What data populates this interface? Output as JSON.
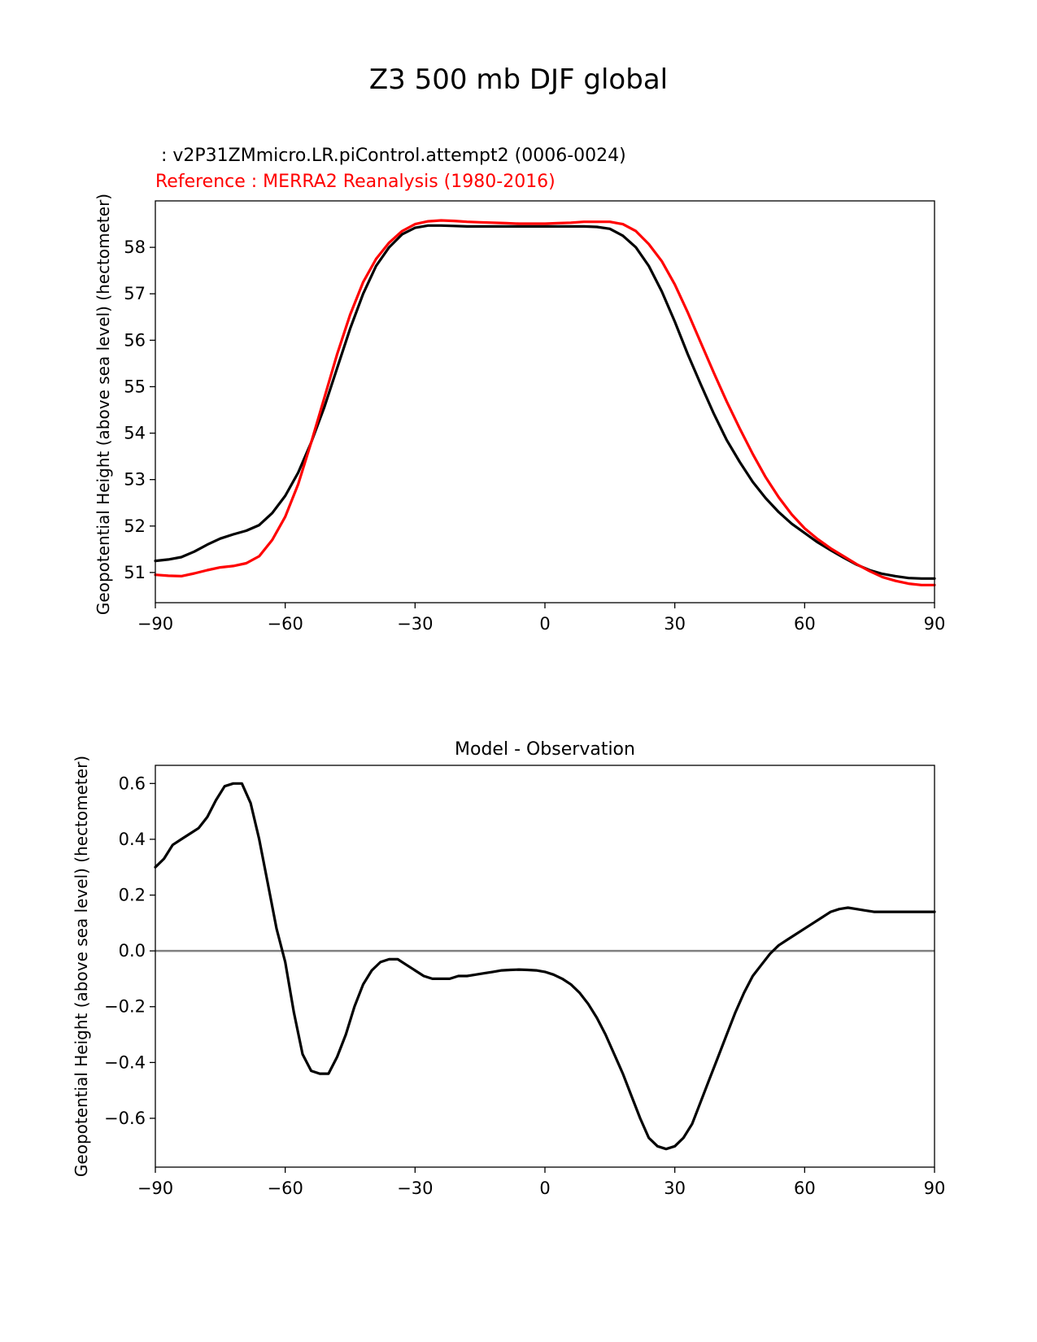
{
  "figure": {
    "suptitle": "Z3 500 mb DJF global"
  },
  "chart_data": [
    {
      "type": "line",
      "test_title": " : v2P31ZMmicro.LR.piControl.attempt2 (0006-0024)",
      "ref_title": "Reference : MERRA2 Reanalysis (1980-2016)",
      "ylabel": "Geopotential Height (above sea level) (hectometer)",
      "xlabel": "",
      "xlim": [
        -90,
        90
      ],
      "ylim": [
        50.35,
        59.0
      ],
      "xticks": [
        -90,
        -60,
        -30,
        0,
        30,
        60,
        90
      ],
      "xtick_labels": [
        "−90",
        "−60",
        "−30",
        "0",
        "30",
        "60",
        "90"
      ],
      "yticks": [
        51,
        52,
        53,
        54,
        55,
        56,
        57,
        58
      ],
      "ytick_labels": [
        "51",
        "52",
        "53",
        "54",
        "55",
        "56",
        "57",
        "58"
      ],
      "series": [
        {
          "name": "test",
          "color": "#000000",
          "x": [
            -90,
            -87,
            -84,
            -81,
            -78,
            -75,
            -72,
            -69,
            -66,
            -63,
            -60,
            -57,
            -54,
            -51,
            -48,
            -45,
            -42,
            -39,
            -36,
            -33,
            -30,
            -27,
            -24,
            -21,
            -18,
            -15,
            -12,
            -9,
            -6,
            -3,
            0,
            3,
            6,
            9,
            12,
            15,
            18,
            21,
            24,
            27,
            30,
            33,
            36,
            39,
            42,
            45,
            48,
            51,
            54,
            57,
            60,
            63,
            66,
            69,
            72,
            75,
            78,
            81,
            84,
            87,
            90
          ],
          "y": [
            51.25,
            51.28,
            51.33,
            51.45,
            51.6,
            51.73,
            51.82,
            51.9,
            52.02,
            52.28,
            52.65,
            53.15,
            53.8,
            54.55,
            55.4,
            56.25,
            57.0,
            57.6,
            58.0,
            58.28,
            58.42,
            58.47,
            58.47,
            58.46,
            58.45,
            58.45,
            58.45,
            58.45,
            58.45,
            58.45,
            58.45,
            58.45,
            58.45,
            58.45,
            58.44,
            58.4,
            58.25,
            58.0,
            57.6,
            57.05,
            56.4,
            55.7,
            55.05,
            54.42,
            53.85,
            53.38,
            52.95,
            52.6,
            52.3,
            52.05,
            51.85,
            51.65,
            51.48,
            51.32,
            51.17,
            51.05,
            50.97,
            50.92,
            50.88,
            50.87,
            50.87
          ]
        },
        {
          "name": "reference",
          "color": "#ff0000",
          "x": [
            -90,
            -87,
            -84,
            -81,
            -78,
            -75,
            -72,
            -69,
            -66,
            -63,
            -60,
            -57,
            -54,
            -51,
            -48,
            -45,
            -42,
            -39,
            -36,
            -33,
            -30,
            -27,
            -24,
            -21,
            -18,
            -15,
            -12,
            -9,
            -6,
            -3,
            0,
            3,
            6,
            9,
            12,
            15,
            18,
            21,
            24,
            27,
            30,
            33,
            36,
            39,
            42,
            45,
            48,
            51,
            54,
            57,
            60,
            63,
            66,
            69,
            72,
            75,
            78,
            81,
            84,
            87,
            90
          ],
          "y": [
            50.95,
            50.93,
            50.92,
            50.98,
            51.05,
            51.11,
            51.14,
            51.2,
            51.35,
            51.7,
            52.2,
            52.9,
            53.8,
            54.75,
            55.7,
            56.55,
            57.25,
            57.75,
            58.1,
            58.35,
            58.5,
            58.56,
            58.58,
            58.57,
            58.55,
            58.54,
            58.53,
            58.52,
            58.51,
            58.51,
            58.51,
            58.52,
            58.53,
            58.55,
            58.55,
            58.55,
            58.5,
            58.35,
            58.07,
            57.7,
            57.2,
            56.6,
            55.95,
            55.3,
            54.68,
            54.1,
            53.55,
            53.05,
            52.62,
            52.25,
            51.95,
            51.72,
            51.52,
            51.35,
            51.18,
            51.03,
            50.9,
            50.82,
            50.76,
            50.73,
            50.73
          ]
        }
      ]
    },
    {
      "type": "line",
      "title": "Model - Observation",
      "ylabel": "Geopotential Height (above sea level) (hectometer)",
      "xlabel": "",
      "xlim": [
        -90,
        90
      ],
      "ylim": [
        -0.775,
        0.665
      ],
      "xticks": [
        -90,
        -60,
        -30,
        0,
        30,
        60,
        90
      ],
      "xtick_labels": [
        "−90",
        "−60",
        "−30",
        "0",
        "30",
        "60",
        "90"
      ],
      "yticks": [
        -0.6,
        -0.4,
        -0.2,
        0.0,
        0.2,
        0.4,
        0.6
      ],
      "ytick_labels": [
        "−0.6",
        "−0.4",
        "−0.2",
        "0.0",
        "0.2",
        "0.4",
        "0.6"
      ],
      "zero_line_color": "#808080",
      "series": [
        {
          "name": "difference",
          "color": "#000000",
          "x": [
            -90,
            -88,
            -86,
            -84,
            -82,
            -80,
            -78,
            -76,
            -74,
            -72,
            -70,
            -68,
            -66,
            -64,
            -62,
            -60,
            -58,
            -56,
            -54,
            -52,
            -50,
            -48,
            -46,
            -44,
            -42,
            -40,
            -38,
            -36,
            -34,
            -32,
            -30,
            -28,
            -26,
            -24,
            -22,
            -20,
            -18,
            -16,
            -14,
            -12,
            -10,
            -8,
            -6,
            -4,
            -2,
            0,
            2,
            4,
            6,
            8,
            10,
            12,
            14,
            16,
            18,
            20,
            22,
            24,
            26,
            28,
            30,
            32,
            34,
            36,
            38,
            40,
            42,
            44,
            46,
            48,
            50,
            52,
            54,
            56,
            58,
            60,
            62,
            64,
            66,
            68,
            70,
            72,
            74,
            76,
            78,
            80,
            82,
            84,
            86,
            88,
            90
          ],
          "y": [
            0.3,
            0.33,
            0.38,
            0.4,
            0.42,
            0.44,
            0.48,
            0.54,
            0.59,
            0.6,
            0.6,
            0.53,
            0.4,
            0.24,
            0.08,
            -0.04,
            -0.22,
            -0.37,
            -0.43,
            -0.44,
            -0.44,
            -0.38,
            -0.3,
            -0.2,
            -0.12,
            -0.07,
            -0.04,
            -0.03,
            -0.03,
            -0.05,
            -0.07,
            -0.09,
            -0.1,
            -0.1,
            -0.1,
            -0.09,
            -0.09,
            -0.085,
            -0.08,
            -0.075,
            -0.07,
            -0.068,
            -0.067,
            -0.068,
            -0.07,
            -0.075,
            -0.085,
            -0.1,
            -0.12,
            -0.15,
            -0.19,
            -0.24,
            -0.3,
            -0.37,
            -0.44,
            -0.52,
            -0.6,
            -0.67,
            -0.7,
            -0.71,
            -0.7,
            -0.67,
            -0.62,
            -0.54,
            -0.46,
            -0.38,
            -0.3,
            -0.22,
            -0.15,
            -0.09,
            -0.05,
            -0.01,
            0.02,
            0.04,
            0.06,
            0.08,
            0.1,
            0.12,
            0.14,
            0.15,
            0.155,
            0.15,
            0.145,
            0.14,
            0.14,
            0.14,
            0.14,
            0.14,
            0.14,
            0.14,
            0.14
          ]
        }
      ]
    }
  ]
}
